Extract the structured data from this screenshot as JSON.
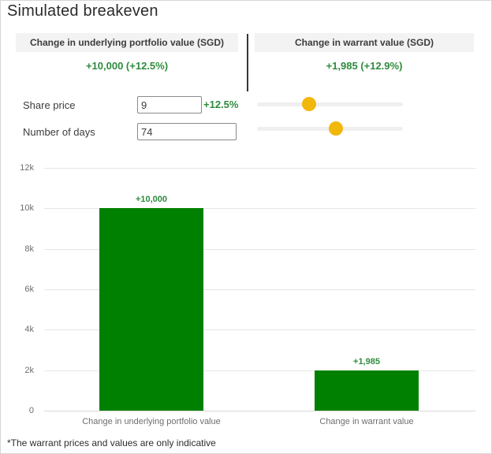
{
  "page": {
    "title": "Simulated breakeven",
    "footnote": "*The warrant prices and values are only indicative"
  },
  "panels": {
    "left": {
      "header": "Change in underlying portfolio value (SGD)",
      "value": "+10,000 (+12.5%)"
    },
    "right": {
      "header": "Change in warrant value (SGD)",
      "value": "+1,985 (+12.9%)"
    }
  },
  "form": {
    "share_price": {
      "label": "Share price",
      "value": "9",
      "change_pct": "+12.5%"
    },
    "number_of_days": {
      "label": "Number of days",
      "value": "74"
    }
  },
  "sliders": {
    "share_price": {
      "percent": 35.7
    },
    "number_of_days": {
      "percent": 54.0
    }
  },
  "colors": {
    "bar_green": "#008000",
    "text_green": "#2e8b3d",
    "slider_handle_gold": "#f2b70b",
    "header_bg": "#f3f3f3"
  },
  "chart_data": {
    "type": "bar",
    "categories": [
      "Change in underlying portfolio value",
      "Change in warrant value"
    ],
    "values": [
      10000,
      1985
    ],
    "bar_labels": [
      "+10,000",
      "+1,985"
    ],
    "yticks": [
      0,
      2000,
      4000,
      6000,
      8000,
      10000,
      12000
    ],
    "ytick_labels": [
      "0",
      "2k",
      "4k",
      "6k",
      "8k",
      "10k",
      "12k"
    ],
    "ylim": [
      0,
      12000
    ],
    "title": "",
    "xlabel": "",
    "ylabel": "",
    "grid": true,
    "legend": false,
    "bar_color": "#008000"
  }
}
